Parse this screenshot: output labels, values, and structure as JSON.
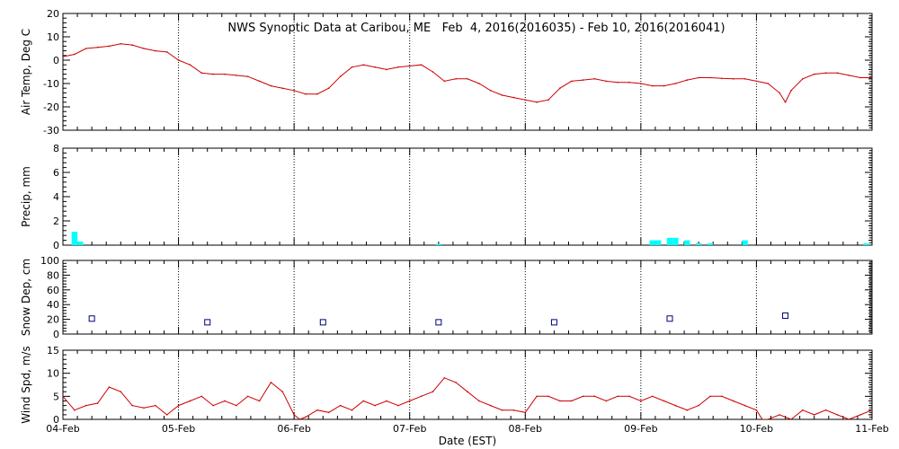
{
  "chart_data": {
    "type": "line",
    "title": "NWS Synoptic Data at Caribou, ME   Feb  4, 2016(2016035) - Feb 10, 2016(2016041)",
    "xlabel": "Date (EST)",
    "x_tick_labels": [
      "04-Feb",
      "05-Feb",
      "06-Feb",
      "07-Feb",
      "08-Feb",
      "09-Feb",
      "10-Feb",
      "11-Feb"
    ],
    "x_unit": "days since 04-Feb 00:00 EST",
    "xlim": [
      0,
      7
    ],
    "grid": "dotted vertical lines at each day",
    "panels": [
      {
        "id": "air_temp",
        "type": "line",
        "ylabel": "Air Temp, Deg C",
        "ylim": [
          -30,
          20
        ],
        "yticks": [
          -30,
          -20,
          -10,
          0,
          10,
          20
        ],
        "color": "#cc0000",
        "series": [
          {
            "x": [
              0,
              0.1,
              0.2,
              0.3,
              0.4,
              0.5,
              0.6,
              0.7,
              0.8,
              0.9,
              1.0,
              1.1,
              1.2,
              1.3,
              1.4,
              1.5,
              1.6,
              1.7,
              1.8,
              1.9,
              2.0,
              2.1,
              2.2,
              2.3,
              2.4,
              2.5,
              2.6,
              2.7,
              2.8,
              2.9,
              3.0,
              3.1,
              3.2,
              3.3,
              3.4,
              3.5,
              3.6,
              3.7,
              3.8,
              3.9,
              4.0,
              4.1,
              4.2,
              4.3,
              4.4,
              4.5,
              4.6,
              4.7,
              4.8,
              4.9,
              5.0,
              5.1,
              5.2,
              5.3,
              5.4,
              5.5,
              5.6,
              5.7,
              5.8,
              5.9,
              6.0,
              6.1,
              6.2,
              6.25,
              6.3,
              6.4,
              6.5,
              6.6,
              6.7,
              6.8,
              6.9,
              7.0
            ],
            "values": [
              1.5,
              2.5,
              5,
              5.5,
              6,
              7,
              6.5,
              5,
              4,
              3.5,
              0,
              -2,
              -5.5,
              -6,
              -6,
              -6.5,
              -7,
              -9,
              -11,
              -12,
              -13,
              -14.5,
              -14.5,
              -12,
              -7,
              -3,
              -2,
              -3,
              -4,
              -3,
              -2.5,
              -2,
              -5,
              -9,
              -8,
              -8,
              -10,
              -13,
              -15,
              -16,
              -17,
              -18,
              -17,
              -12,
              -9,
              -8.5,
              -8,
              -9,
              -9.5,
              -9.5,
              -10,
              -11,
              -11,
              -10,
              -8.5,
              -7.5,
              -7.5,
              -7.8,
              -8,
              -8,
              -9,
              -10,
              -14,
              -18,
              -13,
              -8,
              -6,
              -5.5,
              -5.5,
              -6.5,
              -7.5,
              -7.5
            ]
          }
        ]
      },
      {
        "id": "precip",
        "type": "bar",
        "ylabel": "Precip, mm",
        "ylim": [
          0,
          8
        ],
        "yticks": [
          0,
          2,
          4,
          6,
          8
        ],
        "color": "#00ffff",
        "bar_width_days": 0.05,
        "x": [
          0.1,
          0.15,
          3.25,
          5.1,
          5.15,
          5.25,
          5.3,
          5.4,
          5.5,
          5.6,
          5.9,
          6.95
        ],
        "values": [
          1.1,
          0.3,
          0.1,
          0.4,
          0.4,
          0.6,
          0.6,
          0.4,
          0.15,
          0.15,
          0.4,
          0.15
        ]
      },
      {
        "id": "snow_depth",
        "type": "scatter",
        "ylabel": "Snow Dep, cm",
        "ylim": [
          0,
          100
        ],
        "yticks": [
          0,
          20,
          40,
          60,
          80,
          100
        ],
        "color": "#000080",
        "marker": "open square",
        "x": [
          0.25,
          1.25,
          2.25,
          3.25,
          4.25,
          5.25,
          6.25
        ],
        "values": [
          21,
          16,
          16,
          16,
          16,
          21,
          25
        ]
      },
      {
        "id": "wind_speed",
        "type": "line",
        "ylabel": "Wind Spd, m/s",
        "ylim": [
          0,
          15
        ],
        "yticks": [
          0,
          5,
          10,
          15
        ],
        "color": "#cc0000",
        "series": [
          {
            "x": [
              0,
              0.1,
              0.2,
              0.3,
              0.4,
              0.5,
              0.6,
              0.7,
              0.8,
              0.9,
              1.0,
              1.1,
              1.2,
              1.3,
              1.4,
              1.5,
              1.6,
              1.7,
              1.8,
              1.9,
              2.0,
              2.05,
              2.1,
              2.2,
              2.3,
              2.4,
              2.5,
              2.6,
              2.7,
              2.8,
              2.9,
              3.0,
              3.1,
              3.2,
              3.3,
              3.4,
              3.5,
              3.6,
              3.7,
              3.8,
              3.9,
              4.0,
              4.1,
              4.2,
              4.3,
              4.4,
              4.5,
              4.6,
              4.7,
              4.8,
              4.9,
              5.0,
              5.1,
              5.2,
              5.3,
              5.4,
              5.5,
              5.6,
              5.7,
              5.8,
              5.9,
              6.0,
              6.05,
              6.1,
              6.2,
              6.3,
              6.4,
              6.5,
              6.6,
              6.7,
              6.8,
              6.9,
              7.0
            ],
            "values": [
              5,
              2,
              3,
              3.5,
              7,
              6,
              3,
              2.5,
              3,
              1,
              3,
              4,
              5,
              3,
              4,
              3,
              5,
              4,
              8,
              6,
              1,
              0,
              0.5,
              2,
              1.5,
              3,
              2,
              4,
              3,
              4,
              3,
              4,
              5,
              6,
              9,
              8,
              6,
              4,
              3,
              2,
              2,
              1.5,
              5,
              5,
              4,
              4,
              5,
              5,
              4,
              5,
              5,
              4,
              5,
              4,
              3,
              2,
              3,
              5,
              5,
              4,
              3,
              2,
              0,
              0,
              1,
              0,
              2,
              1,
              2,
              1,
              0,
              1,
              2
            ]
          }
        ]
      }
    ]
  }
}
